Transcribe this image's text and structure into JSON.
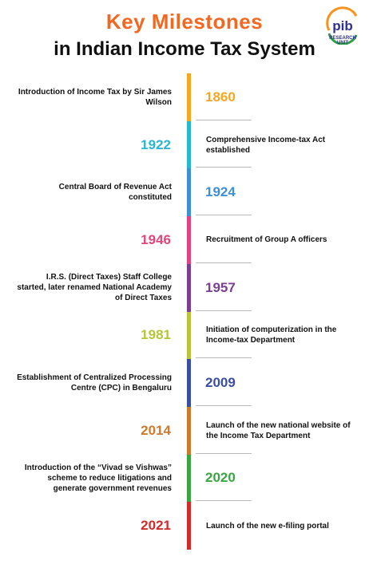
{
  "header": {
    "title_line1": "Key Milestones",
    "title_line2": "in Indian Income Tax System",
    "title_color": "#f26722"
  },
  "logo": {
    "name": "pib",
    "caption": "RESEARCH UNIT",
    "colors": {
      "saffron": "#f7941d",
      "green": "#2e9e48",
      "blue": "#2e3192"
    }
  },
  "milestones": [
    {
      "year": "1860",
      "color": "#f5a623",
      "year_side": "right",
      "description": "Introduction of Income Tax by Sir James Wilson"
    },
    {
      "year": "1922",
      "color": "#29b6d3",
      "year_side": "left",
      "description": "Comprehensive Income-tax Act established"
    },
    {
      "year": "1924",
      "color": "#3d8fd8",
      "year_side": "right",
      "description": "Central Board of Revenue Act constituted"
    },
    {
      "year": "1946",
      "color": "#e2457b",
      "year_side": "left",
      "description": "Recruitment of Group A officers"
    },
    {
      "year": "1957",
      "color": "#7a3e93",
      "year_side": "right",
      "description": "I.R.S. (Direct Taxes) Staff College started, later renamed National Academy of Direct Taxes"
    },
    {
      "year": "1981",
      "color": "#b6c53a",
      "year_side": "left",
      "description": "Initiation of computerization in the Income-tax Department"
    },
    {
      "year": "2009",
      "color": "#3a4ea3",
      "year_side": "right",
      "description": "Establishment of Centralized Processing Centre (CPC) in Bengaluru"
    },
    {
      "year": "2014",
      "color": "#cc7a2e",
      "year_side": "left",
      "description": "Launch of the new national website of the Income Tax Department"
    },
    {
      "year": "2020",
      "color": "#3aa642",
      "year_side": "right",
      "description": "Introduction of the “Vivad se Vishwas” scheme to reduce litigations and generate government revenues"
    },
    {
      "year": "2021",
      "color": "#d32a2a",
      "year_side": "left",
      "description": "Launch of the new e-filing portal"
    }
  ]
}
